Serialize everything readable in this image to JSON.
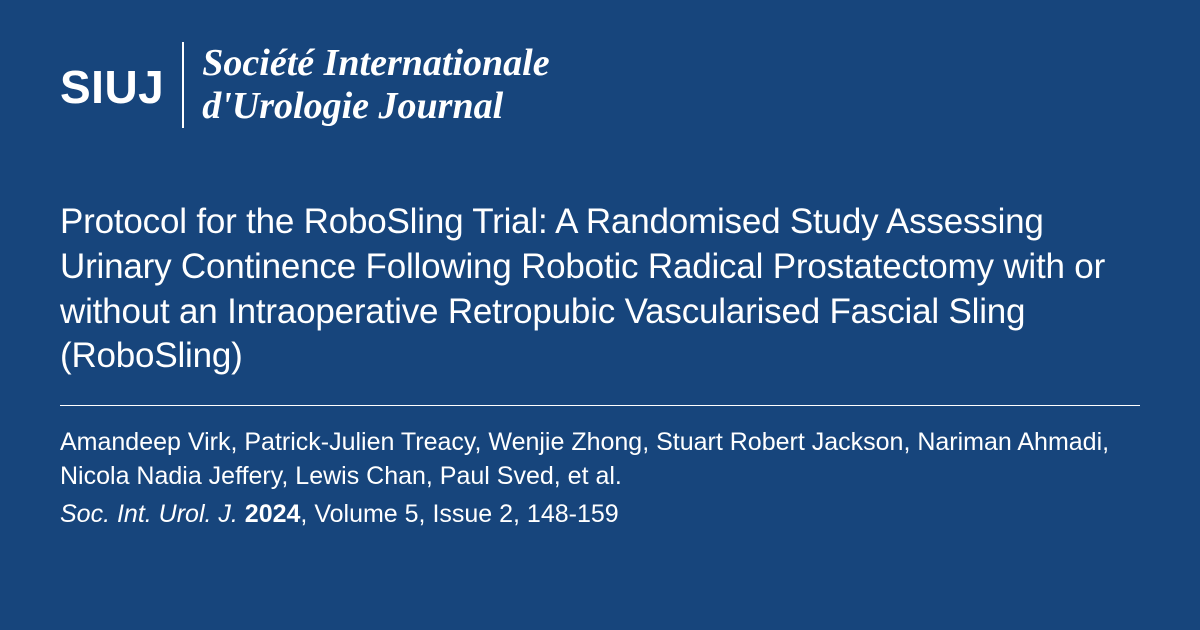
{
  "colors": {
    "background": "#17457c",
    "text": "#ffffff",
    "divider": "#ffffff"
  },
  "typography": {
    "title_fontsize": 35,
    "logo_abbrev_fontsize": 46,
    "logo_full_fontsize": 38,
    "meta_fontsize": 25
  },
  "logo": {
    "abbrev": "SIUJ",
    "full_line1": "Société Internationale",
    "full_line2": "d'Urologie Journal"
  },
  "article": {
    "title": "Protocol for the RoboSling Trial: A Randomised Study Assessing Urinary Continence Following Robotic Radical Prostatectomy with or without an Intraoperative Retropubic Vascularised Fascial Sling (RoboSling)",
    "authors": "Amandeep Virk, Patrick-Julien Treacy, Wenjie Zhong, Stuart Robert Jackson, Nariman Ahmadi, Nicola Nadia Jeffery, Lewis Chan, Paul Sved, et al.",
    "citation": {
      "journal": "Soc. Int. Urol. J.",
      "year": "2024",
      "details": ", Volume 5, Issue 2, 148-159"
    }
  }
}
